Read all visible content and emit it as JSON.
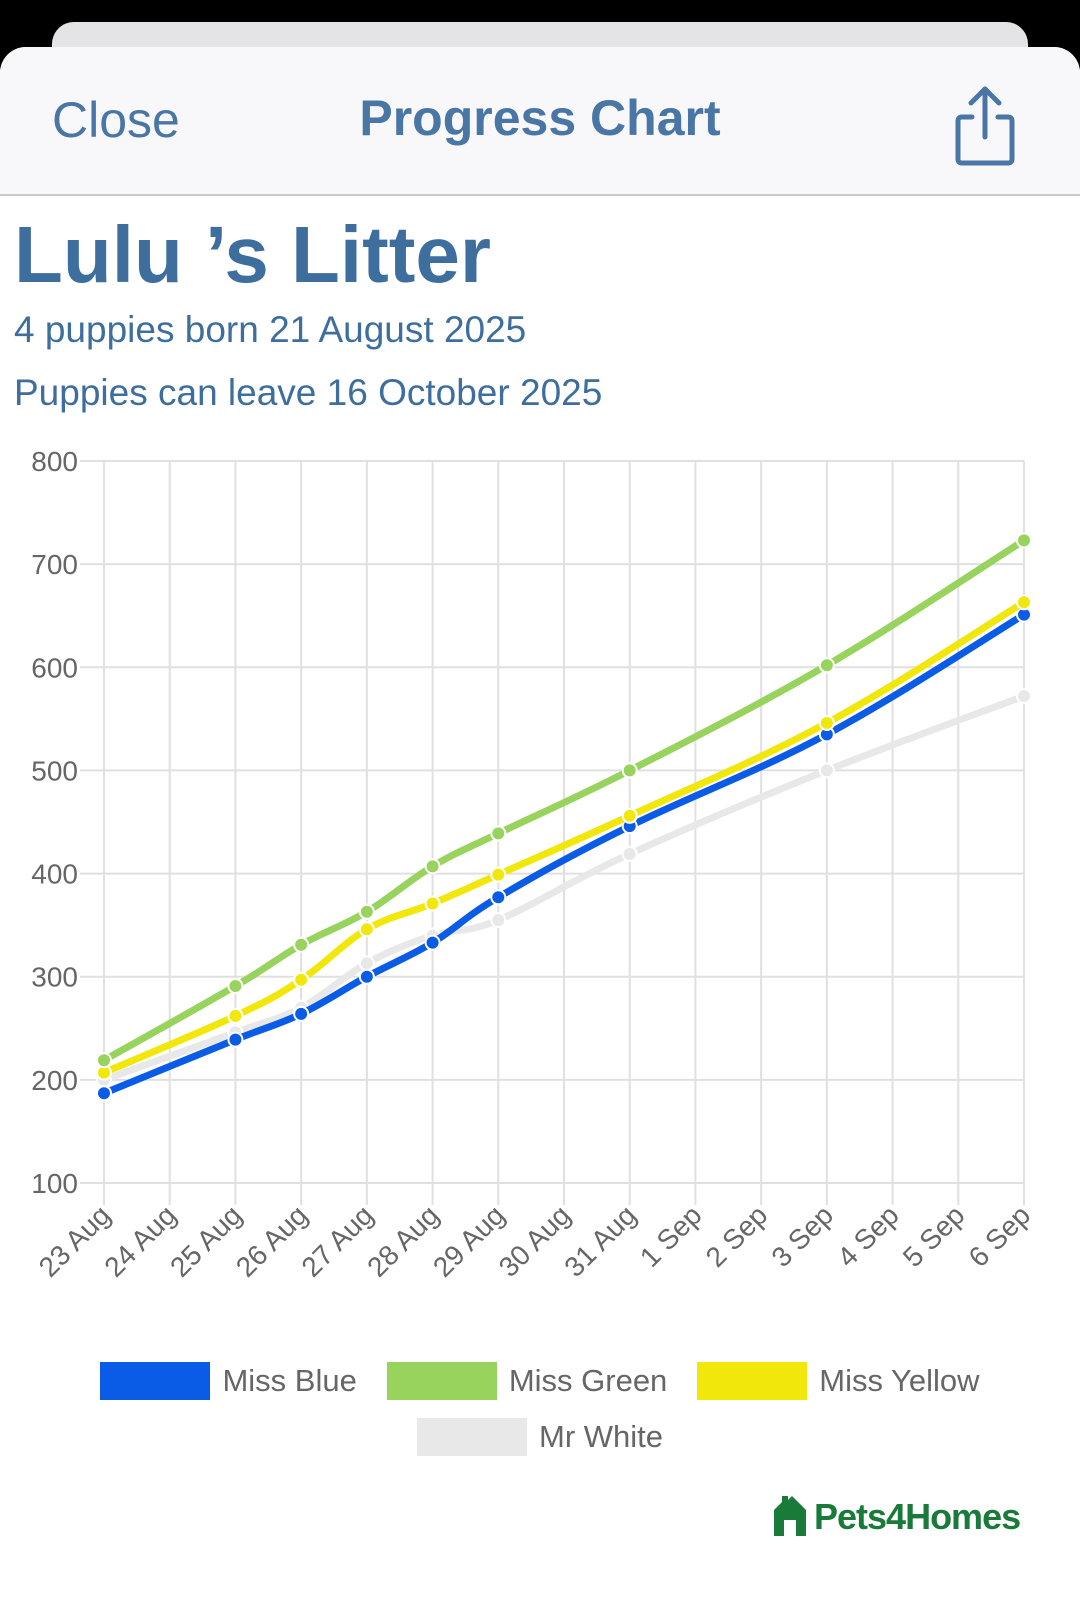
{
  "nav": {
    "close_label": "Close",
    "title": "Progress Chart",
    "share_icon": "share-icon"
  },
  "litter": {
    "title": "Lulu ’s Litter",
    "born": "4 puppies born 21 August 2025",
    "leave": "Puppies can leave 16 October 2025"
  },
  "brand": {
    "name": "Pets4Homes",
    "color": "#1a7a3a"
  },
  "chart_data": {
    "type": "line",
    "title": "",
    "xlabel": "",
    "ylabel": "",
    "ylim": [
      100,
      800
    ],
    "yticks": [
      100,
      200,
      300,
      400,
      500,
      600,
      700,
      800
    ],
    "grid": true,
    "legend": "bottom",
    "categories": [
      "23 Aug",
      "24 Aug",
      "25 Aug",
      "26 Aug",
      "27 Aug",
      "28 Aug",
      "29 Aug",
      "30 Aug",
      "31 Aug",
      "1 Sep",
      "2 Sep",
      "3 Sep",
      "4 Sep",
      "5 Sep",
      "6 Sep"
    ],
    "series": [
      {
        "name": "Miss Blue",
        "color": "#0a5be6",
        "values": [
          187,
          null,
          239,
          264,
          300,
          333,
          377,
          null,
          446,
          null,
          null,
          535,
          null,
          null,
          651
        ]
      },
      {
        "name": "Miss Green",
        "color": "#97d35d",
        "values": [
          219,
          null,
          291,
          331,
          363,
          407,
          439,
          null,
          500,
          null,
          null,
          602,
          null,
          null,
          723
        ]
      },
      {
        "name": "Miss Yellow",
        "color": "#f2e70b",
        "values": [
          207,
          null,
          262,
          297,
          346,
          371,
          399,
          null,
          456,
          null,
          null,
          546,
          null,
          null,
          663
        ]
      },
      {
        "name": "Mr White",
        "color": "#e8e8e8",
        "values": [
          200,
          null,
          246,
          270,
          313,
          340,
          355,
          null,
          419,
          null,
          null,
          500,
          null,
          null,
          572
        ]
      }
    ]
  }
}
